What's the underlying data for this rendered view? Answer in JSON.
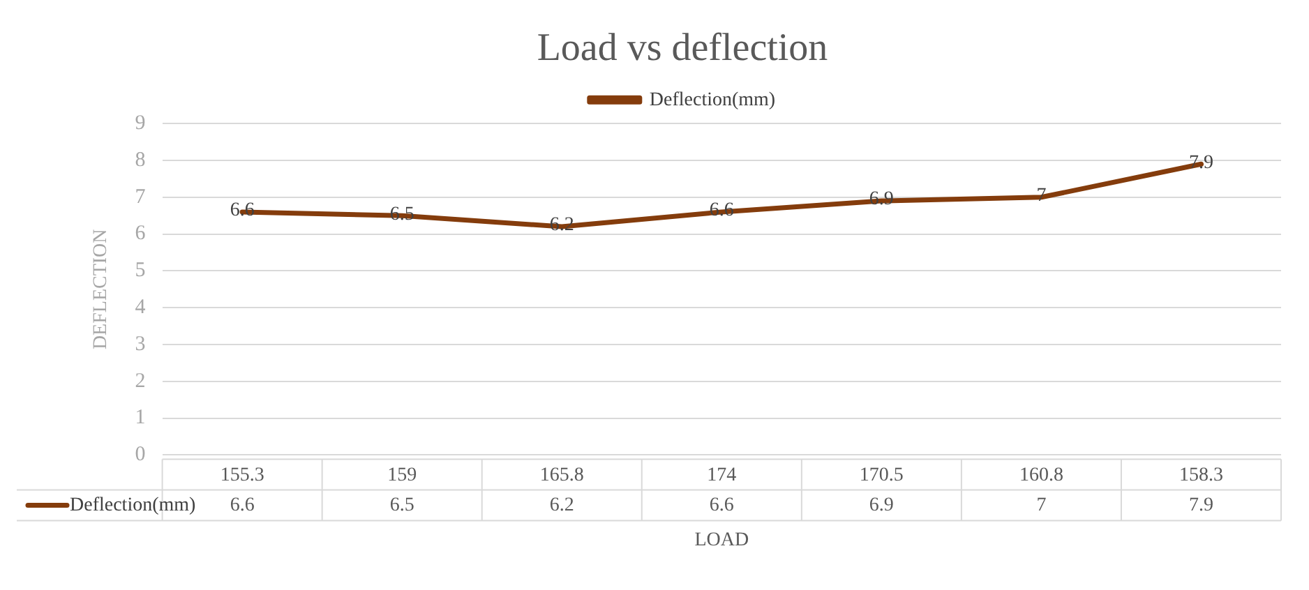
{
  "chart_data": {
    "type": "line",
    "title": "Load vs deflection",
    "xlabel": "LOAD",
    "ylabel": "DEFLECTION",
    "categories": [
      "155.3",
      "159",
      "165.8",
      "174",
      "170.5",
      "160.8",
      "158.3"
    ],
    "series": [
      {
        "name": "Deflection(mm)",
        "color": "#843c0c",
        "values": [
          6.6,
          6.5,
          6.2,
          6.6,
          6.9,
          7,
          7.9
        ],
        "value_labels": [
          "6.6",
          "6.5",
          "6.2",
          "6.6",
          "6.9",
          "7",
          "7.9"
        ]
      }
    ],
    "ylim": [
      0,
      9
    ],
    "yticks": [
      0,
      1,
      2,
      3,
      4,
      5,
      6,
      7,
      8,
      9
    ],
    "annotations": [
      "6.6",
      "6.5",
      "6.2",
      "6.6",
      "6.9",
      "7",
      "7.9"
    ],
    "grid": "y",
    "legend": "top",
    "marker": "none"
  }
}
